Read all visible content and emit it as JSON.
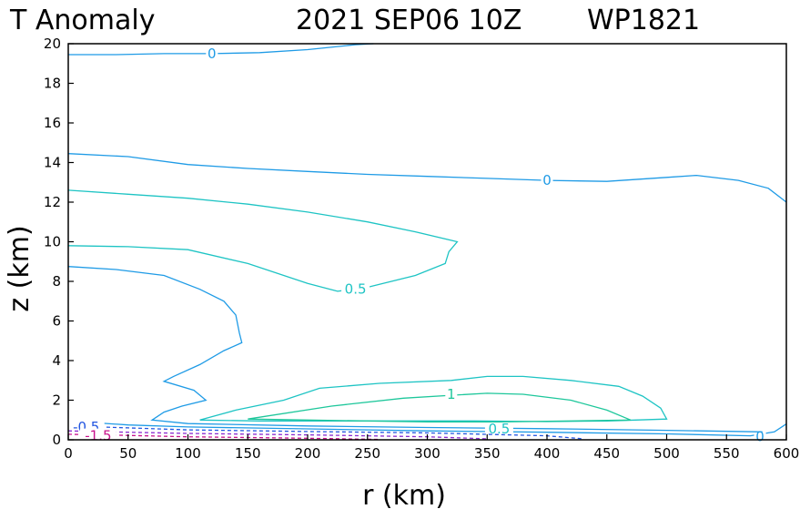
{
  "header": {
    "field": "T Anomaly",
    "datetime": "2021 SEP06 10Z",
    "storm": "WP1821"
  },
  "chart_data": {
    "type": "contour",
    "title": "T Anomaly",
    "xlabel": "r (km)",
    "ylabel": "z (km)",
    "xlim": [
      0,
      600
    ],
    "ylim": [
      0,
      20
    ],
    "xticks": [
      0,
      50,
      100,
      150,
      200,
      250,
      300,
      350,
      400,
      450,
      500,
      550,
      600
    ],
    "yticks": [
      0,
      2,
      4,
      6,
      8,
      10,
      12,
      14,
      16,
      18,
      20
    ],
    "grid": false,
    "colors": {
      "0": "#1f9be6",
      "0.5": "#1ec4c4",
      "1": "#1ec79b",
      "-0.5": "#2255e0",
      "-1": "#8a2ad0",
      "-1.5": "#c8128c"
    },
    "contours": [
      {
        "level": 0,
        "label": "0",
        "label_at": [
          120,
          19.5
        ],
        "points": [
          [
            0,
            19.45
          ],
          [
            40,
            19.45
          ],
          [
            80,
            19.5
          ],
          [
            120,
            19.5
          ],
          [
            160,
            19.55
          ],
          [
            200,
            19.7
          ],
          [
            240,
            19.95
          ],
          [
            255,
            20
          ]
        ]
      },
      {
        "level": 0,
        "label": "0",
        "label_at": [
          400,
          13.1
        ],
        "points": [
          [
            0,
            14.45
          ],
          [
            50,
            14.3
          ],
          [
            100,
            13.9
          ],
          [
            150,
            13.7
          ],
          [
            200,
            13.55
          ],
          [
            250,
            13.4
          ],
          [
            300,
            13.3
          ],
          [
            350,
            13.2
          ],
          [
            400,
            13.1
          ],
          [
            450,
            13.05
          ],
          [
            500,
            13.25
          ],
          [
            525,
            13.35
          ],
          [
            560,
            13.1
          ],
          [
            585,
            12.7
          ],
          [
            600,
            12.0
          ]
        ]
      },
      {
        "level": 0,
        "label": "0",
        "label_at": [
          578,
          0.15
        ],
        "points": [
          [
            0,
            0.95
          ],
          [
            50,
            0.75
          ],
          [
            100,
            0.65
          ],
          [
            200,
            0.55
          ],
          [
            300,
            0.45
          ],
          [
            400,
            0.38
          ],
          [
            500,
            0.3
          ],
          [
            570,
            0.2
          ],
          [
            590,
            0.4
          ],
          [
            600,
            0.8
          ]
        ]
      },
      {
        "level": 0,
        "label": "",
        "label_at": [],
        "points": [
          [
            0,
            8.75
          ],
          [
            40,
            8.6
          ],
          [
            80,
            8.3
          ],
          [
            110,
            7.6
          ],
          [
            130,
            7.0
          ],
          [
            140,
            6.3
          ],
          [
            143,
            5.4
          ],
          [
            145,
            4.9
          ],
          [
            130,
            4.5
          ],
          [
            110,
            3.8
          ],
          [
            88,
            3.2
          ],
          [
            80,
            2.95
          ],
          [
            105,
            2.5
          ],
          [
            115,
            2.0
          ],
          [
            95,
            1.7
          ],
          [
            80,
            1.4
          ],
          [
            70,
            1.0
          ],
          [
            100,
            0.82
          ],
          [
            200,
            0.7
          ],
          [
            300,
            0.62
          ],
          [
            400,
            0.56
          ],
          [
            500,
            0.48
          ],
          [
            580,
            0.4
          ]
        ]
      },
      {
        "level": 0.5,
        "label": "0.5",
        "label_at": [
          240,
          7.6
        ],
        "points": [
          [
            0,
            12.6
          ],
          [
            50,
            12.4
          ],
          [
            100,
            12.2
          ],
          [
            150,
            11.9
          ],
          [
            200,
            11.5
          ],
          [
            250,
            11.0
          ],
          [
            290,
            10.5
          ],
          [
            325,
            10.0
          ],
          [
            318,
            9.5
          ],
          [
            315,
            8.9
          ],
          [
            290,
            8.3
          ],
          [
            250,
            7.7
          ],
          [
            225,
            7.5
          ],
          [
            200,
            7.9
          ],
          [
            150,
            8.9
          ],
          [
            100,
            9.6
          ],
          [
            50,
            9.75
          ],
          [
            0,
            9.8
          ]
        ]
      },
      {
        "level": 0.5,
        "label": "0.5",
        "label_at": [
          360,
          0.55
        ],
        "points": [
          [
            110,
            1.0
          ],
          [
            140,
            1.5
          ],
          [
            180,
            2.0
          ],
          [
            210,
            2.6
          ],
          [
            260,
            2.85
          ],
          [
            320,
            3.0
          ],
          [
            350,
            3.2
          ],
          [
            380,
            3.2
          ],
          [
            420,
            3.0
          ],
          [
            460,
            2.7
          ],
          [
            480,
            2.2
          ],
          [
            495,
            1.6
          ],
          [
            500,
            1.05
          ],
          [
            450,
            0.95
          ],
          [
            400,
            0.92
          ],
          [
            340,
            0.95
          ],
          [
            280,
            0.95
          ],
          [
            220,
            0.95
          ],
          [
            160,
            0.95
          ],
          [
            110,
            1.0
          ]
        ]
      },
      {
        "level": 1,
        "label": "1",
        "label_at": [
          320,
          2.3
        ],
        "points": [
          [
            150,
            1.05
          ],
          [
            220,
            1.7
          ],
          [
            280,
            2.1
          ],
          [
            320,
            2.25
          ],
          [
            350,
            2.35
          ],
          [
            380,
            2.3
          ],
          [
            420,
            2.0
          ],
          [
            450,
            1.5
          ],
          [
            470,
            1.0
          ],
          [
            420,
            0.95
          ],
          [
            360,
            0.9
          ],
          [
            300,
            0.9
          ],
          [
            250,
            0.95
          ],
          [
            200,
            1.0
          ],
          [
            150,
            1.05
          ]
        ]
      },
      {
        "level": -0.5,
        "label": "-0.5",
        "label_at": [
          15,
          0.65
        ],
        "points": [
          [
            0,
            0.7
          ],
          [
            50,
            0.6
          ],
          [
            100,
            0.5
          ],
          [
            200,
            0.42
          ],
          [
            300,
            0.35
          ],
          [
            400,
            0.2
          ],
          [
            430,
            0.05
          ]
        ]
      },
      {
        "level": -1,
        "label": "",
        "label_at": [],
        "points": [
          [
            0,
            0.45
          ],
          [
            50,
            0.38
          ],
          [
            100,
            0.32
          ],
          [
            200,
            0.25
          ],
          [
            300,
            0.15
          ],
          [
            350,
            0.05
          ]
        ]
      },
      {
        "level": -1.5,
        "label": "-1.5",
        "label_at": [
          25,
          0.2
        ],
        "points": [
          [
            0,
            0.28
          ],
          [
            50,
            0.22
          ],
          [
            100,
            0.15
          ],
          [
            200,
            0.08
          ],
          [
            260,
            0.02
          ]
        ]
      }
    ]
  }
}
